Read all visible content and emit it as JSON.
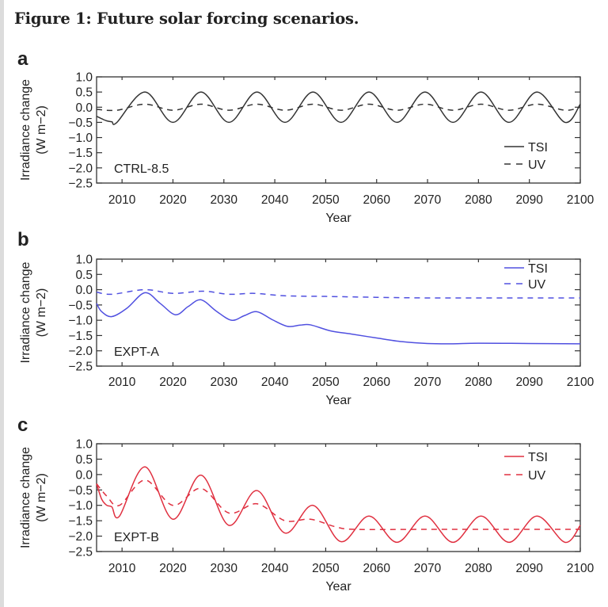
{
  "figure_title": "Figure 1: Future solar forcing scenarios.",
  "chart_data": [
    {
      "type": "line",
      "panel_label": "a",
      "scenario_label": "CTRL-8.5",
      "xlabel": "Year",
      "ylabel": "Irradiance change",
      "ylabel_units": "(W m−2)",
      "xlim": [
        2005,
        2100
      ],
      "ylim": [
        -2.5,
        1.0
      ],
      "xticks": [
        "2010",
        "2020",
        "2030",
        "2040",
        "2050",
        "2060",
        "2070",
        "2080",
        "2090",
        "2100"
      ],
      "yticks": [
        "1.0",
        "0.5",
        "0.0",
        "−0.5",
        "−1.0",
        "−1.5",
        "−2.0",
        "−2.5"
      ],
      "legend_placement": "bottom-right",
      "color": "#333333",
      "series": [
        {
          "name": "TSI",
          "style": "solid",
          "x": [
            2005,
            2006,
            2007,
            2008,
            2009,
            2014.5,
            2020,
            2025.5,
            2031,
            2036.5,
            2042,
            2047.5,
            2053,
            2058.5,
            2064,
            2069.5,
            2075,
            2080.5,
            2086,
            2091.5,
            2097,
            2100
          ],
          "y": [
            -0.3,
            -0.38,
            -0.45,
            -0.48,
            -0.5,
            0.5,
            -0.5,
            0.5,
            -0.5,
            0.5,
            -0.5,
            0.5,
            -0.5,
            0.5,
            -0.5,
            0.5,
            -0.5,
            0.5,
            -0.5,
            0.5,
            -0.5,
            0.1
          ]
        },
        {
          "name": "UV",
          "style": "dashed",
          "x": [
            2005,
            2009,
            2014.5,
            2020,
            2025.5,
            2031,
            2036.5,
            2042,
            2047.5,
            2053,
            2058.5,
            2064,
            2069.5,
            2075,
            2080.5,
            2086,
            2091.5,
            2097,
            2100
          ],
          "y": [
            -0.07,
            -0.1,
            0.1,
            -0.1,
            0.1,
            -0.1,
            0.1,
            -0.1,
            0.1,
            -0.1,
            0.1,
            -0.1,
            0.1,
            -0.1,
            0.1,
            -0.1,
            0.1,
            -0.1,
            0.0
          ]
        }
      ]
    },
    {
      "type": "line",
      "panel_label": "b",
      "scenario_label": "EXPT-A",
      "xlabel": "Year",
      "ylabel": "Irradiance change",
      "ylabel_units": "(W m−2)",
      "xlim": [
        2005,
        2100
      ],
      "ylim": [
        -2.5,
        1.0
      ],
      "xticks": [
        "2010",
        "2020",
        "2030",
        "2040",
        "2050",
        "2060",
        "2070",
        "2080",
        "2090",
        "2100"
      ],
      "yticks": [
        "1.0",
        "0.5",
        "0.0",
        "−0.5",
        "−1.0",
        "−1.5",
        "−2.0",
        "−2.5"
      ],
      "legend_placement": "top-right",
      "color": "#5050e0",
      "series": [
        {
          "name": "TSI",
          "style": "solid",
          "x": [
            2005,
            2006,
            2008,
            2011,
            2014.5,
            2017.5,
            2020.5,
            2023,
            2025.5,
            2028.5,
            2031.5,
            2034,
            2036.5,
            2039.5,
            2042.5,
            2045,
            2047,
            2051,
            2055,
            2060,
            2065,
            2070,
            2075,
            2080,
            2090,
            2100
          ],
          "y": [
            -0.45,
            -0.72,
            -0.88,
            -0.6,
            -0.1,
            -0.45,
            -0.82,
            -0.55,
            -0.33,
            -0.7,
            -1.0,
            -0.85,
            -0.72,
            -0.98,
            -1.2,
            -1.16,
            -1.15,
            -1.35,
            -1.45,
            -1.58,
            -1.7,
            -1.76,
            -1.77,
            -1.75,
            -1.76,
            -1.77
          ]
        },
        {
          "name": "UV",
          "style": "dashed",
          "x": [
            2005,
            2008,
            2014.5,
            2020,
            2026,
            2031,
            2036,
            2042,
            2050,
            2060,
            2070,
            2080,
            2090,
            2100
          ],
          "y": [
            -0.08,
            -0.15,
            0.0,
            -0.12,
            -0.05,
            -0.15,
            -0.12,
            -0.2,
            -0.22,
            -0.25,
            -0.27,
            -0.27,
            -0.27,
            -0.27
          ]
        }
      ]
    },
    {
      "type": "line",
      "panel_label": "c",
      "scenario_label": "EXPT-B",
      "xlabel": "Year",
      "ylabel": "Irradiance change",
      "ylabel_units": "(W m−2)",
      "xlim": [
        2005,
        2100
      ],
      "ylim": [
        -2.5,
        1.0
      ],
      "xticks": [
        "2010",
        "2020",
        "2030",
        "2040",
        "2050",
        "2060",
        "2070",
        "2080",
        "2090",
        "2100"
      ],
      "yticks": [
        "1.0",
        "0.5",
        "0.0",
        "−0.5",
        "−1.0",
        "−1.5",
        "−2.0",
        "−2.5"
      ],
      "legend_placement": "top-right",
      "color": "#e03040",
      "series": [
        {
          "name": "TSI",
          "style": "solid",
          "x": [
            2005,
            2006,
            2007,
            2008,
            2009.5,
            2014.5,
            2020,
            2025.5,
            2031,
            2036.5,
            2042,
            2047.5,
            2053,
            2058.5,
            2064,
            2069.5,
            2075,
            2080.5,
            2086,
            2091.5,
            2097,
            2100
          ],
          "y": [
            -0.3,
            -0.8,
            -1.0,
            -1.05,
            -1.35,
            0.25,
            -1.45,
            -0.02,
            -1.65,
            -0.52,
            -1.9,
            -1.0,
            -2.18,
            -1.35,
            -2.2,
            -1.35,
            -2.2,
            -1.35,
            -2.2,
            -1.35,
            -2.2,
            -1.65
          ]
        },
        {
          "name": "UV",
          "style": "dashed",
          "x": [
            2005,
            2007,
            2009.5,
            2014.5,
            2020,
            2025.5,
            2031,
            2036.5,
            2042,
            2047,
            2052,
            2056,
            2070,
            2085,
            2100
          ],
          "y": [
            -0.3,
            -0.7,
            -1.0,
            -0.18,
            -1.0,
            -0.45,
            -1.25,
            -0.95,
            -1.5,
            -1.45,
            -1.7,
            -1.78,
            -1.78,
            -1.78,
            -1.78
          ]
        }
      ]
    }
  ]
}
